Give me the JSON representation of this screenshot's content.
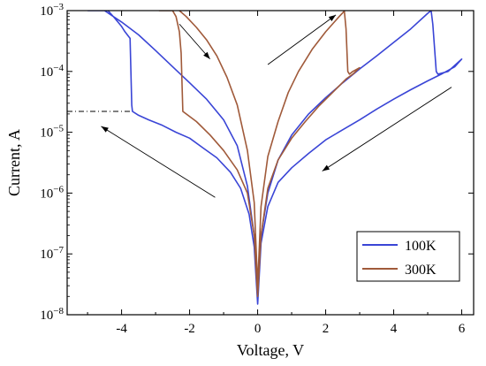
{
  "chart_data": {
    "type": "line",
    "title": "",
    "xlabel": "Voltage, V",
    "ylabel": "Current, A",
    "xlim": [
      -5.6,
      6.35
    ],
    "ylim_log10": [
      -8,
      -3
    ],
    "yscale": "log",
    "x_ticks": [
      -4,
      -2,
      0,
      2,
      4,
      6
    ],
    "x_tick_labels": [
      "-4",
      "-2",
      "0",
      "2",
      "4",
      "6"
    ],
    "y_ticks_log10": [
      -3,
      -4,
      -5,
      -6,
      -7,
      -8
    ],
    "legend_position": "bottom-right",
    "colors": {
      "100K": "#3a45d6",
      "300K": "#a05a3a",
      "arrow": "#000000",
      "reference": "#000000"
    },
    "series": [
      {
        "name": "100K",
        "points": [
          [
            -5.0,
            0.001
          ],
          [
            -4.4,
            0.001
          ],
          [
            -4.2,
            0.00075
          ],
          [
            -4.0,
            0.00055
          ],
          [
            -3.9,
            0.00045
          ],
          [
            -3.75,
            0.00035
          ],
          [
            -3.7,
            2.8e-05
          ],
          [
            -3.68,
            2.2e-05
          ],
          [
            -3.5,
            1.9e-05
          ],
          [
            -3.2,
            1.6e-05
          ],
          [
            -2.8,
            1.3e-05
          ],
          [
            -2.4,
            1e-05
          ],
          [
            -2.0,
            8e-06
          ],
          [
            -1.6,
            5.5e-06
          ],
          [
            -1.2,
            3.8e-06
          ],
          [
            -0.8,
            2.2e-06
          ],
          [
            -0.5,
            1.2e-06
          ],
          [
            -0.25,
            4.5e-07
          ],
          [
            -0.1,
            1.3e-07
          ],
          [
            0.0,
            1.5e-08
          ],
          [
            0.1,
            1.5e-07
          ],
          [
            0.3,
            6e-07
          ],
          [
            0.6,
            1.5e-06
          ],
          [
            1.0,
            2.6e-06
          ],
          [
            1.5,
            4.5e-06
          ],
          [
            2.0,
            7.5e-06
          ],
          [
            2.5,
            1.1e-05
          ],
          [
            3.0,
            1.6e-05
          ],
          [
            3.5,
            2.4e-05
          ],
          [
            4.0,
            3.5e-05
          ],
          [
            4.5,
            5e-05
          ],
          [
            5.0,
            7e-05
          ],
          [
            5.4,
            9e-05
          ],
          [
            5.8,
            0.00012
          ],
          [
            6.0,
            0.00016
          ],
          [
            5.6,
            0.0001
          ],
          [
            5.3,
            9e-05
          ],
          [
            5.25,
            0.0001
          ],
          [
            5.15,
            0.0006
          ],
          [
            5.1,
            0.001
          ],
          [
            5.0,
            0.0009
          ],
          [
            4.5,
            0.0005
          ],
          [
            4.0,
            0.0003
          ],
          [
            3.5,
            0.00018
          ],
          [
            3.0,
            0.00011
          ],
          [
            2.5,
            6.5e-05
          ],
          [
            2.0,
            3.7e-05
          ],
          [
            1.5,
            2e-05
          ],
          [
            1.0,
            9e-06
          ],
          [
            0.6,
            3.5e-06
          ],
          [
            0.3,
            1e-06
          ],
          [
            0.1,
            2e-07
          ],
          [
            0.0,
            2e-08
          ],
          [
            -0.1,
            2e-07
          ],
          [
            -0.3,
            1.3e-06
          ],
          [
            -0.6,
            6e-06
          ],
          [
            -1.0,
            1.6e-05
          ],
          [
            -1.5,
            3.5e-05
          ],
          [
            -2.0,
            6.5e-05
          ],
          [
            -2.5,
            0.00012
          ],
          [
            -3.0,
            0.00022
          ],
          [
            -3.5,
            0.0004
          ],
          [
            -4.0,
            0.00065
          ],
          [
            -4.5,
            0.001
          ]
        ]
      },
      {
        "name": "300K",
        "points": [
          [
            -2.9,
            0.001
          ],
          [
            -2.5,
            0.001
          ],
          [
            -2.4,
            0.0008
          ],
          [
            -2.35,
            0.0006
          ],
          [
            -2.3,
            0.00045
          ],
          [
            -2.25,
            0.0002
          ],
          [
            -2.2,
            2.2e-05
          ],
          [
            -1.8,
            1.5e-05
          ],
          [
            -1.4,
            9e-06
          ],
          [
            -1.0,
            5e-06
          ],
          [
            -0.6,
            2.4e-06
          ],
          [
            -0.3,
            1e-06
          ],
          [
            -0.1,
            2e-07
          ],
          [
            0.0,
            2e-08
          ],
          [
            0.1,
            2e-07
          ],
          [
            0.3,
            1.2e-06
          ],
          [
            0.6,
            3.5e-06
          ],
          [
            1.0,
            8e-06
          ],
          [
            1.4,
            1.5e-05
          ],
          [
            1.8,
            2.7e-05
          ],
          [
            2.2,
            4.5e-05
          ],
          [
            2.6,
            7.5e-05
          ],
          [
            2.8,
            9e-05
          ],
          [
            3.0,
            0.000115
          ],
          [
            2.8,
            0.0001
          ],
          [
            2.7,
            9e-05
          ],
          [
            2.65,
            0.0001
          ],
          [
            2.6,
            0.0005
          ],
          [
            2.55,
            0.00098
          ],
          [
            2.4,
            0.0008
          ],
          [
            2.0,
            0.00045
          ],
          [
            1.6,
            0.00023
          ],
          [
            1.2,
            0.0001
          ],
          [
            0.9,
            4.5e-05
          ],
          [
            0.6,
            1.5e-05
          ],
          [
            0.3,
            4e-06
          ],
          [
            0.1,
            6e-07
          ],
          [
            0.0,
            3e-08
          ],
          [
            -0.1,
            7e-07
          ],
          [
            -0.3,
            5e-06
          ],
          [
            -0.6,
            2.8e-05
          ],
          [
            -0.9,
            8e-05
          ],
          [
            -1.2,
            0.00018
          ],
          [
            -1.5,
            0.00033
          ],
          [
            -1.8,
            0.00053
          ],
          [
            -2.1,
            0.0008
          ],
          [
            -2.3,
            0.001
          ]
        ]
      }
    ],
    "reference_lines": [
      {
        "style": "dash-dot",
        "points": [
          [
            -5.6,
            2.2e-05
          ],
          [
            -3.7,
            2.2e-05
          ]
        ]
      },
      {
        "style": "dash-dot",
        "points": [
          [
            2.6,
            0.001
          ],
          [
            6.35,
            0.001
          ]
        ]
      }
    ],
    "arrows": [
      {
        "from": [
          -2.3,
          0.0006
        ],
        "to": [
          -1.4,
          0.00016
        ]
      },
      {
        "from": [
          0.3,
          0.00013
        ],
        "to": [
          2.3,
          0.00085
        ]
      },
      {
        "from": [
          5.7,
          5.5e-05
        ],
        "to": [
          1.9,
          2.3e-06
        ]
      },
      {
        "from": [
          -1.25,
          8.5e-07
        ],
        "to": [
          -4.6,
          1.25e-05
        ]
      }
    ]
  }
}
